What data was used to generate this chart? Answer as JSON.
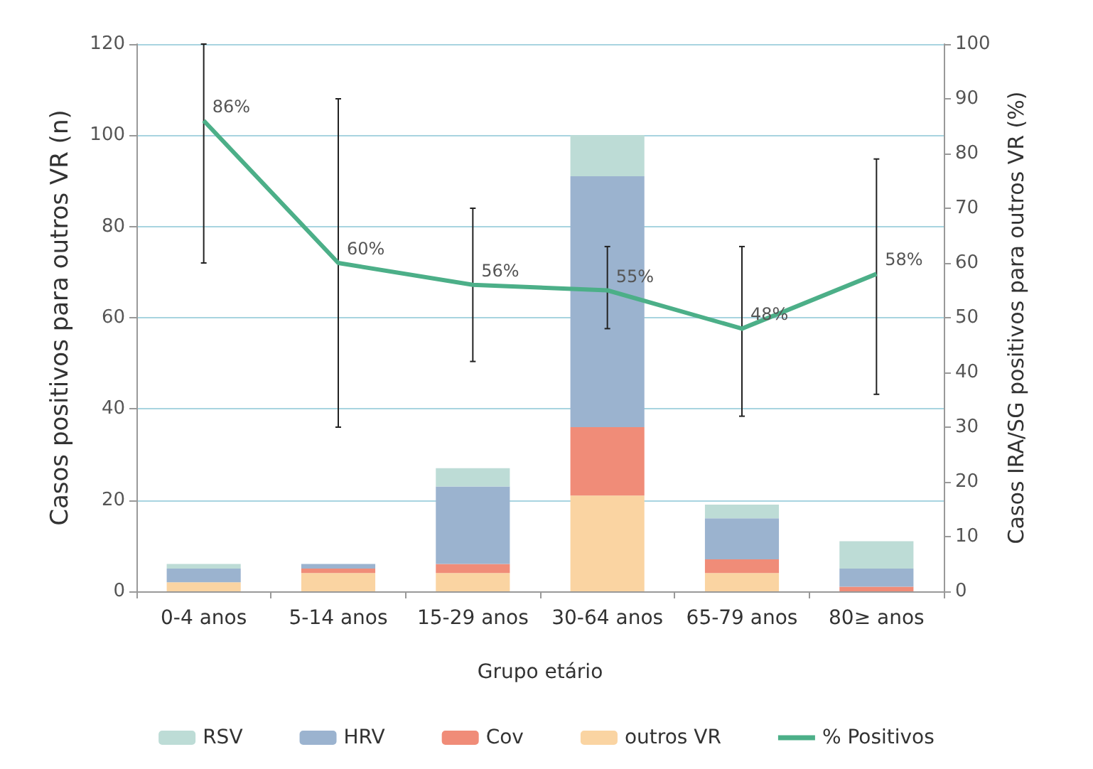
{
  "chart_data": {
    "type": "bar",
    "stacked": true,
    "categories": [
      "0-4 anos",
      "5-14 anos",
      "15-29 anos",
      "30-64 anos",
      "65-79 anos",
      "80≥ anos"
    ],
    "xlabel": "Grupo etário",
    "ylabel": "Casos positivos para outros VR (n)",
    "y2label": "Casos IRA/SG positivos para outros VR (%)",
    "ylim": [
      0,
      120
    ],
    "yticks": [
      0,
      20,
      40,
      60,
      80,
      100,
      120
    ],
    "y2lim": [
      0,
      100
    ],
    "y2ticks": [
      0,
      10,
      20,
      30,
      40,
      50,
      60,
      70,
      80,
      90,
      100
    ],
    "grid": "y",
    "legend": "bottom",
    "series": [
      {
        "name": "outros VR",
        "color": "#fad4a2",
        "values": [
          2,
          4,
          4,
          21,
          4,
          0
        ]
      },
      {
        "name": "Cov",
        "color": "#f08c78",
        "values": [
          0,
          1,
          2,
          15,
          3,
          1
        ]
      },
      {
        "name": "HRV",
        "color": "#9bb3cf",
        "values": [
          3,
          1,
          17,
          55,
          9,
          4
        ]
      },
      {
        "name": "RSV",
        "color": "#bddcd6",
        "values": [
          1,
          0,
          4,
          9,
          3,
          6
        ]
      },
      {
        "name": "% Positivos",
        "type": "line",
        "axis": "y2",
        "color": "#4caf88",
        "marker": "none",
        "values": [
          86,
          60,
          56,
          55,
          48,
          58
        ],
        "value_labels": [
          "86%",
          "60%",
          "56%",
          "55%",
          "48%",
          "58%"
        ],
        "errors": [
          [
            60,
            100
          ],
          [
            30,
            90
          ],
          [
            42,
            70
          ],
          [
            48,
            63
          ],
          [
            32,
            63
          ],
          [
            36,
            79
          ]
        ]
      }
    ]
  }
}
